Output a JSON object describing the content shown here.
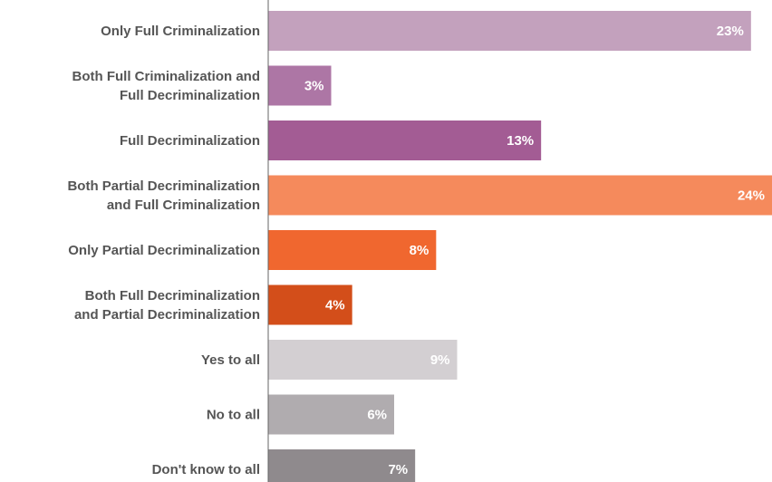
{
  "chart_data": {
    "type": "bar",
    "orientation": "horizontal",
    "categories": [
      [
        "Only Full Criminalization"
      ],
      [
        "Both Full Criminalization and",
        "Full Decriminalization"
      ],
      [
        "Full Decriminalization"
      ],
      [
        "Both Partial Decriminalization",
        "and Full Criminalization"
      ],
      [
        "Only Partial Decriminalization"
      ],
      [
        "Both Full Decriminalization",
        "and Partial Decriminalization"
      ],
      [
        "Yes to all"
      ],
      [
        "No to all"
      ],
      [
        "Don't know to all"
      ]
    ],
    "values": [
      23,
      3,
      13,
      24,
      8,
      4,
      9,
      6,
      7
    ],
    "value_labels": [
      "23%",
      "3%",
      "13%",
      "24%",
      "8%",
      "4%",
      "9%",
      "6%",
      "7%"
    ],
    "colors": [
      "#c3a1bd",
      "#ad76a5",
      "#a35c94",
      "#f58a5c",
      "#f0672f",
      "#d34e1a",
      "#d3cfd2",
      "#b0acaf",
      "#8f8a8d"
    ],
    "xlim": [
      0,
      24
    ],
    "grid": false,
    "axis_line_color": "#666666"
  }
}
